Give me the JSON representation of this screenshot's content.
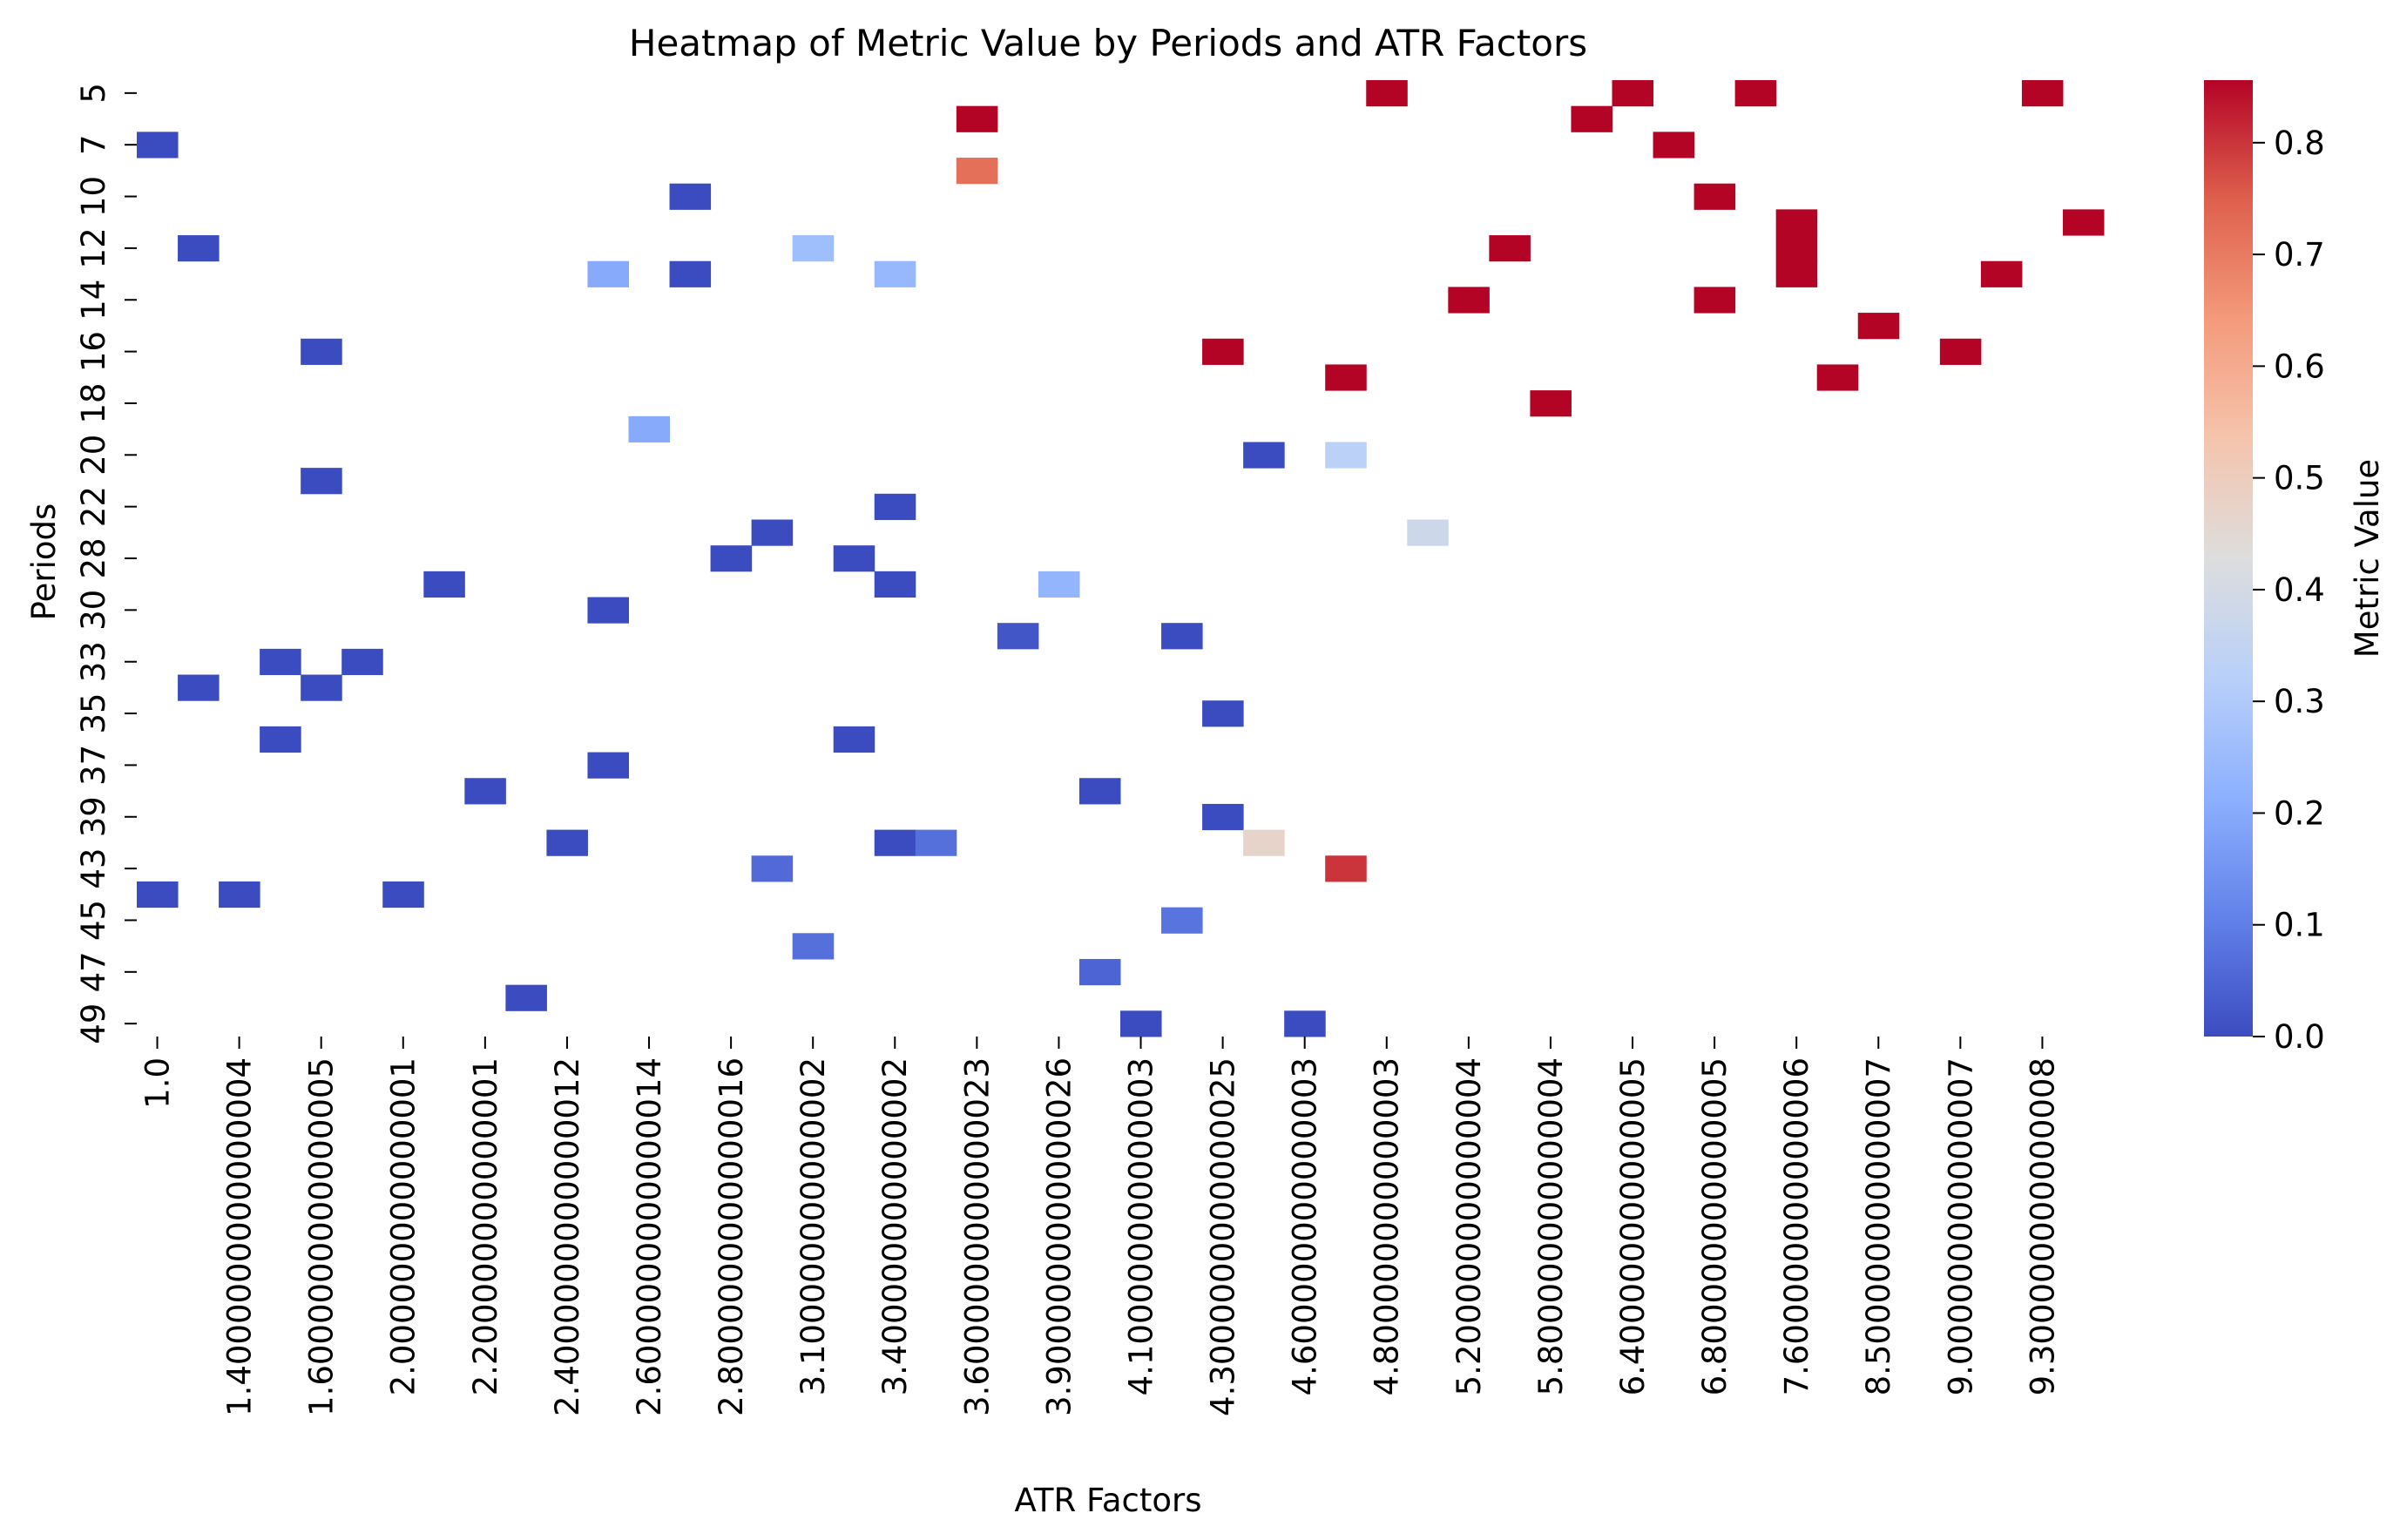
{
  "chart_data": {
    "type": "heatmap",
    "title": "Heatmap of Metric Value by Periods and ATR Factors",
    "xlabel": "ATR Factors",
    "ylabel": "Periods",
    "colorbar_label": "Metric Value",
    "colormap": "coolwarm",
    "vlim": [
      0.0,
      0.856
    ],
    "colorbar_ticks": [
      "0.0",
      "0.1",
      "0.2",
      "0.3",
      "0.4",
      "0.5",
      "0.6",
      "0.7",
      "0.8"
    ],
    "x_tick_labels": [
      "1.0",
      "1.4000000000000004",
      "1.6000000000000005",
      "2.000000000000001",
      "2.200000000000001",
      "2.4000000000000012",
      "2.6000000000000014",
      "2.8000000000000016",
      "3.100000000000002",
      "3.400000000000002",
      "3.6000000000000023",
      "3.9000000000000026",
      "4.100000000000003",
      "4.3000000000000025",
      "4.600000000000003",
      "4.800000000000003",
      "5.200000000000004",
      "5.800000000000004",
      "6.400000000000005",
      "6.800000000000005",
      "7.600000000000006",
      "8.500000000000007",
      "9.000000000000007",
      "9.300000000000008"
    ],
    "x_tick_cols": [
      0,
      2,
      4,
      6,
      8,
      10,
      12,
      14,
      16,
      18,
      20,
      22,
      24,
      26,
      28,
      30,
      32,
      34,
      36,
      38,
      40,
      42,
      44,
      46
    ],
    "n_cols": 48,
    "periods": [
      "5",
      "7",
      "10",
      "12",
      "14",
      "16",
      "18",
      "20",
      "22",
      "28",
      "30",
      "33",
      "35",
      "37",
      "39",
      "43",
      "45",
      "47",
      "49"
    ],
    "cells": [
      {
        "r": 0,
        "c": 30,
        "v": 0.856
      },
      {
        "r": 0,
        "c": 36,
        "v": 0.856
      },
      {
        "r": 0,
        "c": 39,
        "v": 0.856
      },
      {
        "r": 0,
        "c": 46,
        "v": 0.856
      },
      {
        "r": 1,
        "c": 20,
        "v": 0.856
      },
      {
        "r": 1,
        "c": 35,
        "v": 0.856
      },
      {
        "r": 2,
        "c": 0,
        "v": 0.0
      },
      {
        "r": 2,
        "c": 37,
        "v": 0.856
      },
      {
        "r": 3,
        "c": 20,
        "v": 0.72
      },
      {
        "r": 4,
        "c": 13,
        "v": 0.0
      },
      {
        "r": 4,
        "c": 38,
        "v": 0.856
      },
      {
        "r": 5,
        "c": 40,
        "v": 0.856
      },
      {
        "r": 5,
        "c": 47,
        "v": 0.856
      },
      {
        "r": 6,
        "c": 1,
        "v": 0.0
      },
      {
        "r": 6,
        "c": 16,
        "v": 0.26
      },
      {
        "r": 6,
        "c": 33,
        "v": 0.856
      },
      {
        "r": 6,
        "c": 40,
        "v": 0.856
      },
      {
        "r": 7,
        "c": 11,
        "v": 0.2
      },
      {
        "r": 7,
        "c": 13,
        "v": 0.0
      },
      {
        "r": 7,
        "c": 18,
        "v": 0.24
      },
      {
        "r": 7,
        "c": 40,
        "v": 0.856
      },
      {
        "r": 7,
        "c": 45,
        "v": 0.856
      },
      {
        "r": 8,
        "c": 32,
        "v": 0.856
      },
      {
        "r": 8,
        "c": 38,
        "v": 0.856
      },
      {
        "r": 9,
        "c": 42,
        "v": 0.856
      },
      {
        "r": 10,
        "c": 4,
        "v": 0.0
      },
      {
        "r": 10,
        "c": 26,
        "v": 0.856
      },
      {
        "r": 10,
        "c": 44,
        "v": 0.856
      },
      {
        "r": 11,
        "c": 29,
        "v": 0.856
      },
      {
        "r": 11,
        "c": 41,
        "v": 0.856
      },
      {
        "r": 12,
        "c": 34,
        "v": 0.856
      },
      {
        "r": 13,
        "c": 12,
        "v": 0.2
      },
      {
        "r": 14,
        "c": 27,
        "v": 0.0
      },
      {
        "r": 14,
        "c": 29,
        "v": 0.33
      },
      {
        "r": 15,
        "c": 4,
        "v": 0.0
      },
      {
        "r": 16,
        "c": 18,
        "v": 0.0
      },
      {
        "r": 17,
        "c": 15,
        "v": 0.0
      },
      {
        "r": 17,
        "c": 31,
        "v": 0.38
      },
      {
        "r": 18,
        "c": 14,
        "v": 0.0
      },
      {
        "r": 18,
        "c": 17,
        "v": 0.0
      },
      {
        "r": 19,
        "c": 7,
        "v": 0.0
      },
      {
        "r": 19,
        "c": 18,
        "v": 0.0
      },
      {
        "r": 19,
        "c": 22,
        "v": 0.23
      },
      {
        "r": 20,
        "c": 11,
        "v": 0.0
      },
      {
        "r": 21,
        "c": 21,
        "v": 0.02
      },
      {
        "r": 21,
        "c": 25,
        "v": 0.0
      },
      {
        "r": 22,
        "c": 3,
        "v": 0.0
      },
      {
        "r": 22,
        "c": 5,
        "v": 0.0
      },
      {
        "r": 23,
        "c": 1,
        "v": 0.0
      },
      {
        "r": 23,
        "c": 4,
        "v": 0.0
      },
      {
        "r": 24,
        "c": 26,
        "v": 0.0
      },
      {
        "r": 25,
        "c": 3,
        "v": 0.0
      },
      {
        "r": 25,
        "c": 17,
        "v": 0.0
      },
      {
        "r": 26,
        "c": 11,
        "v": 0.0
      },
      {
        "r": 27,
        "c": 8,
        "v": 0.0
      },
      {
        "r": 27,
        "c": 23,
        "v": 0.0
      },
      {
        "r": 28,
        "c": 26,
        "v": 0.0
      },
      {
        "r": 29,
        "c": 10,
        "v": 0.0
      },
      {
        "r": 29,
        "c": 18,
        "v": 0.0
      },
      {
        "r": 29,
        "c": 19,
        "v": 0.07
      },
      {
        "r": 29,
        "c": 27,
        "v": 0.47
      },
      {
        "r": 30,
        "c": 15,
        "v": 0.06
      },
      {
        "r": 30,
        "c": 29,
        "v": 0.8
      },
      {
        "r": 31,
        "c": 0,
        "v": 0.0
      },
      {
        "r": 31,
        "c": 2,
        "v": 0.0
      },
      {
        "r": 31,
        "c": 6,
        "v": 0.0
      },
      {
        "r": 32,
        "c": 25,
        "v": 0.08
      },
      {
        "r": 33,
        "c": 16,
        "v": 0.07
      },
      {
        "r": 34,
        "c": 23,
        "v": 0.05
      },
      {
        "r": 35,
        "c": 9,
        "v": 0.0
      },
      {
        "r": 36,
        "c": 24,
        "v": 0.0
      },
      {
        "r": 36,
        "c": 28,
        "v": 0.0
      }
    ]
  }
}
